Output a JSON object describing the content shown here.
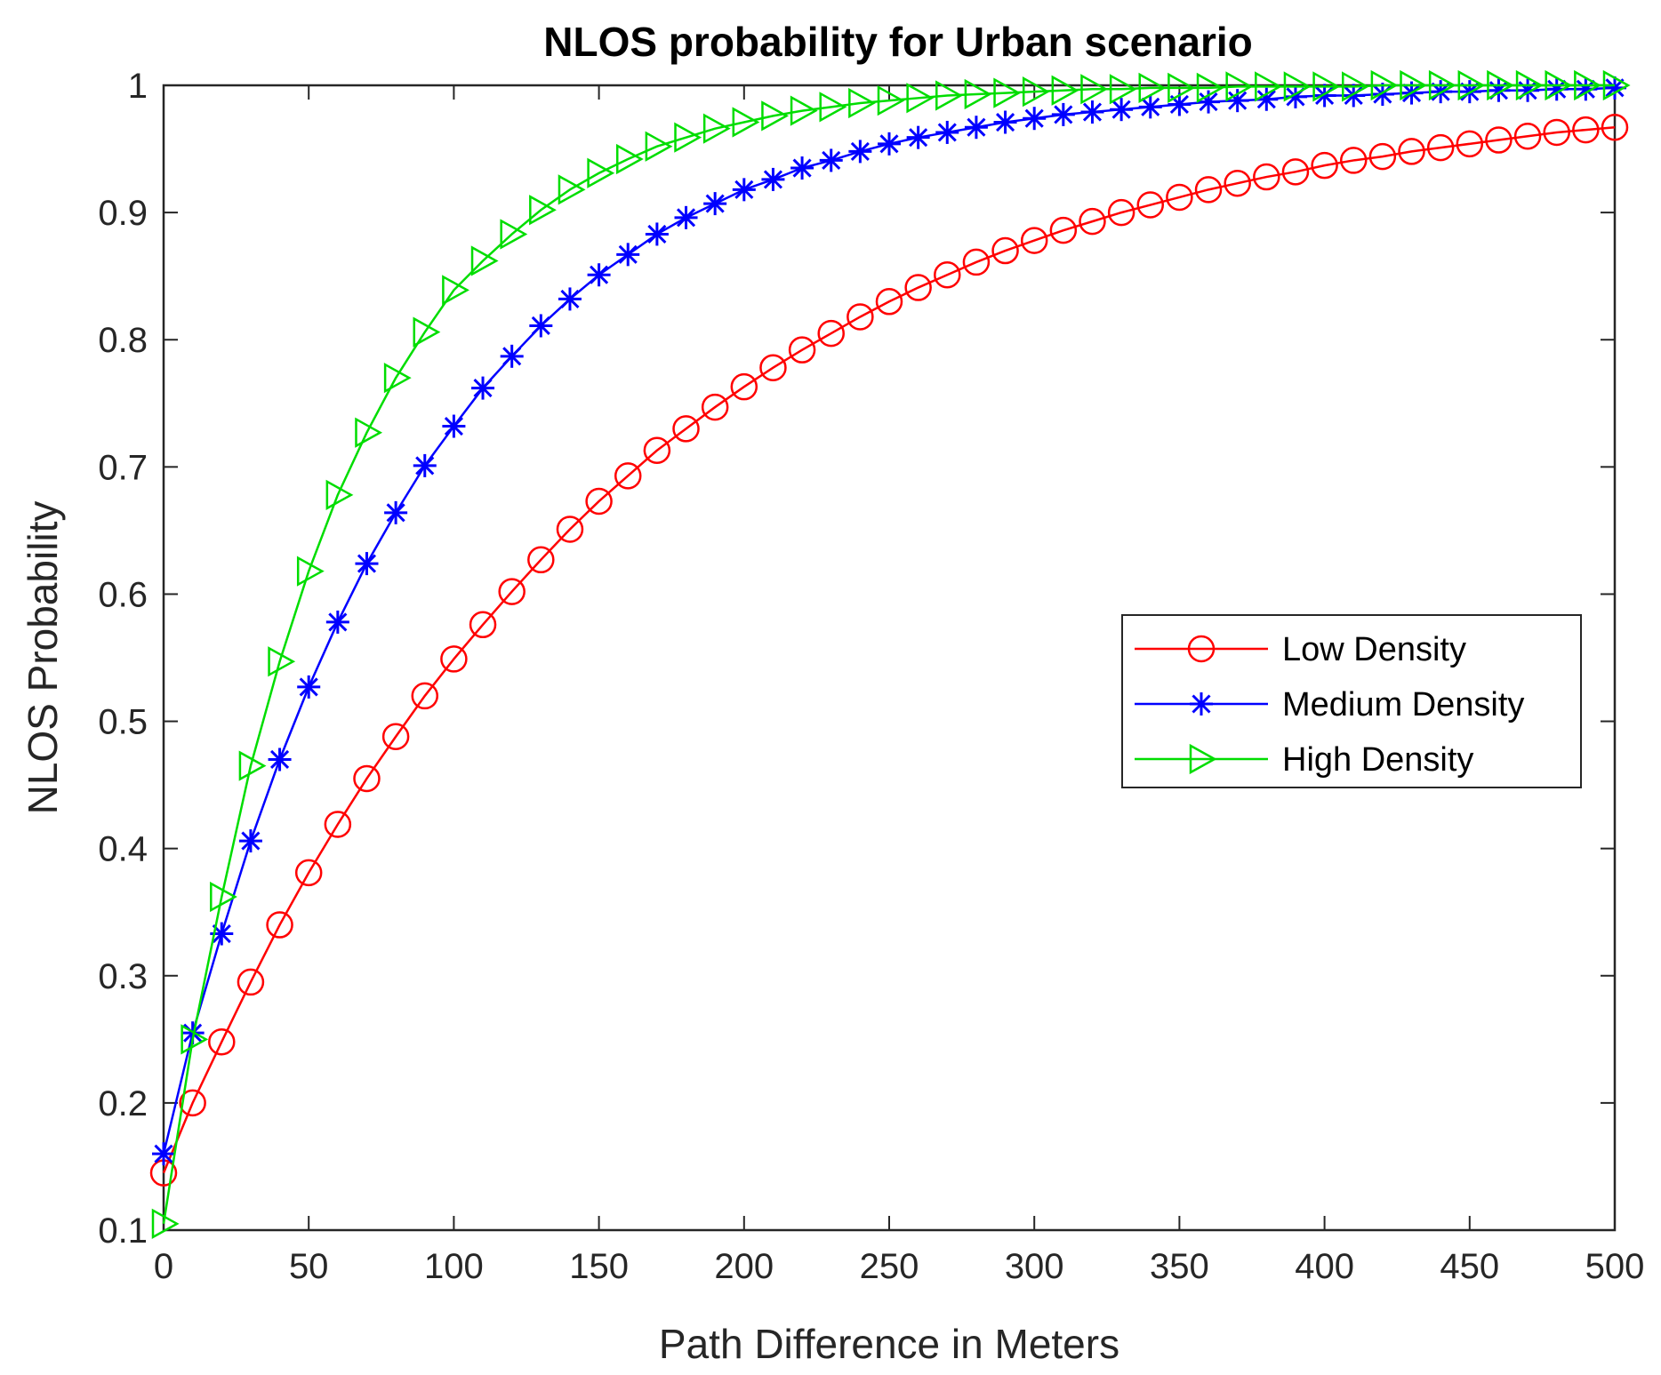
{
  "chart_data": {
    "type": "line",
    "title": "NLOS probability for Urban scenario",
    "xlabel": "Path Difference in Meters",
    "ylabel": "NLOS Probability",
    "xlim": [
      0,
      500
    ],
    "ylim": [
      0.1,
      1
    ],
    "xticks": [
      "0",
      "50",
      "100",
      "150",
      "200",
      "250",
      "300",
      "350",
      "400",
      "450",
      "500"
    ],
    "yticks": [
      "0.1",
      "0.2",
      "0.3",
      "0.4",
      "0.5",
      "0.6",
      "0.7",
      "0.8",
      "0.9",
      "1"
    ],
    "grid": false,
    "legend_position": "center-right",
    "x": [
      0,
      10,
      20,
      30,
      40,
      50,
      60,
      70,
      80,
      90,
      100,
      110,
      120,
      130,
      140,
      150,
      160,
      170,
      180,
      190,
      200,
      210,
      220,
      230,
      240,
      250,
      260,
      270,
      280,
      290,
      300,
      310,
      320,
      330,
      340,
      350,
      360,
      370,
      380,
      390,
      400,
      410,
      420,
      430,
      440,
      450,
      460,
      470,
      480,
      490,
      500
    ],
    "series": [
      {
        "name": "Low Density",
        "color": "#ff0000",
        "marker": "circle",
        "values": [
          0.145,
          0.2,
          0.248,
          0.295,
          0.34,
          0.381,
          0.419,
          0.455,
          0.488,
          0.52,
          0.549,
          0.576,
          0.602,
          0.627,
          0.651,
          0.673,
          0.693,
          0.713,
          0.73,
          0.747,
          0.763,
          0.778,
          0.792,
          0.805,
          0.818,
          0.83,
          0.841,
          0.851,
          0.861,
          0.87,
          0.878,
          0.886,
          0.893,
          0.9,
          0.906,
          0.912,
          0.918,
          0.923,
          0.928,
          0.932,
          0.937,
          0.941,
          0.944,
          0.948,
          0.951,
          0.954,
          0.957,
          0.96,
          0.963,
          0.965,
          0.967
        ]
      },
      {
        "name": "Medium Density",
        "color": "#0000ff",
        "marker": "asterisk",
        "values": [
          0.16,
          0.255,
          0.333,
          0.406,
          0.47,
          0.527,
          0.578,
          0.624,
          0.664,
          0.701,
          0.732,
          0.762,
          0.787,
          0.811,
          0.832,
          0.851,
          0.867,
          0.883,
          0.896,
          0.907,
          0.918,
          0.926,
          0.935,
          0.941,
          0.948,
          0.954,
          0.959,
          0.963,
          0.967,
          0.971,
          0.974,
          0.977,
          0.979,
          0.981,
          0.983,
          0.985,
          0.987,
          0.988,
          0.989,
          0.991,
          0.992,
          0.992,
          0.993,
          0.994,
          0.995,
          0.995,
          0.996,
          0.996,
          0.997,
          0.997,
          0.998
        ]
      },
      {
        "name": "High Density",
        "color": "#00dd00",
        "marker": "triangle-right",
        "values": [
          0.105,
          0.25,
          0.362,
          0.465,
          0.547,
          0.618,
          0.678,
          0.727,
          0.77,
          0.806,
          0.839,
          0.862,
          0.883,
          0.902,
          0.918,
          0.931,
          0.942,
          0.952,
          0.959,
          0.966,
          0.971,
          0.976,
          0.98,
          0.983,
          0.986,
          0.988,
          0.99,
          0.992,
          0.993,
          0.994,
          0.995,
          0.996,
          0.997,
          0.997,
          0.998,
          0.998,
          0.998,
          0.999,
          0.999,
          0.999,
          0.999,
          0.999,
          1.0,
          1.0,
          1.0,
          1.0,
          1.0,
          1.0,
          1.0,
          1.0,
          1.0
        ]
      }
    ]
  }
}
